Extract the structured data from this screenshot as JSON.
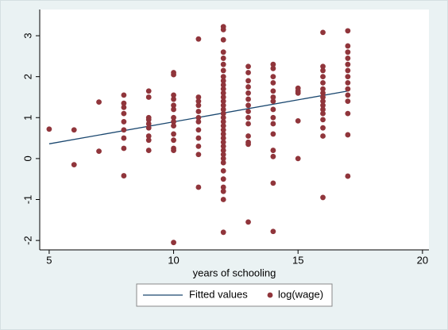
{
  "chart_data": {
    "type": "scatter",
    "xlabel": "years of schooling",
    "xlim": [
      4.62,
      20.26
    ],
    "ylim": [
      -2.23,
      3.64
    ],
    "xticks": [
      5,
      10,
      15,
      20
    ],
    "yticks": [
      -2,
      -1,
      0,
      1,
      2,
      3
    ],
    "grid": false,
    "legend": "bottom",
    "series": [
      {
        "name": "Fitted values",
        "type": "line",
        "color": "#1a476f",
        "x": [
          5,
          17
        ],
        "values": [
          0.36,
          1.65
        ]
      },
      {
        "name": "log(wage)",
        "type": "scatter",
        "color": "#90353b",
        "x": [
          5,
          6,
          6,
          7,
          7,
          8,
          8,
          8,
          8,
          8,
          8,
          8,
          8,
          8,
          9,
          9,
          9,
          9,
          9,
          9,
          9,
          9,
          9,
          10,
          10,
          10,
          10,
          10,
          10,
          10,
          10,
          10,
          10,
          10,
          10,
          10,
          10,
          11,
          11,
          11,
          11,
          11,
          11,
          11,
          11,
          11,
          11,
          11,
          11,
          12,
          12,
          12,
          12,
          12,
          12,
          12,
          12,
          12,
          12,
          12,
          12,
          12,
          12,
          12,
          12,
          12,
          12,
          12,
          12,
          12,
          12,
          12,
          12,
          12,
          12,
          12,
          12,
          12,
          12,
          12,
          12,
          12,
          12,
          12,
          13,
          13,
          13,
          13,
          13,
          13,
          13,
          13,
          13,
          13,
          13,
          13,
          13,
          13,
          14,
          14,
          14,
          14,
          14,
          14,
          14,
          14,
          14,
          14,
          14,
          14,
          14,
          14,
          14,
          15,
          15,
          15,
          15,
          15,
          16,
          16,
          16,
          16,
          16,
          16,
          16,
          16,
          16,
          16,
          16,
          16,
          16,
          16,
          16,
          16,
          17,
          17,
          17,
          17,
          17,
          17,
          17,
          17,
          17,
          17,
          17,
          17,
          17,
          17
        ],
        "values": [
          0.72,
          0.7,
          -0.15,
          1.38,
          0.18,
          1.55,
          1.35,
          1.25,
          1.1,
          0.9,
          0.7,
          0.5,
          0.25,
          -0.42,
          1.65,
          1.5,
          1.0,
          0.95,
          0.85,
          0.75,
          0.55,
          0.45,
          0.2,
          2.1,
          2.05,
          1.55,
          1.45,
          1.3,
          1.2,
          1.0,
          0.9,
          0.8,
          0.6,
          0.45,
          0.25,
          0.2,
          -2.05,
          2.92,
          1.5,
          1.4,
          1.3,
          1.15,
          1.0,
          0.9,
          0.7,
          0.5,
          0.3,
          0.1,
          -0.7,
          3.22,
          3.15,
          2.9,
          2.6,
          2.45,
          2.3,
          2.15,
          2.0,
          1.9,
          1.8,
          1.7,
          1.6,
          1.5,
          1.4,
          1.3,
          1.2,
          1.1,
          1.0,
          0.9,
          0.8,
          0.7,
          0.6,
          0.5,
          0.4,
          0.3,
          0.2,
          0.1,
          0,
          -0.1,
          -0.3,
          -0.5,
          -0.7,
          -0.8,
          -1.0,
          -1.8,
          2.25,
          2.1,
          1.9,
          1.75,
          1.6,
          1.45,
          1.3,
          1.15,
          1.0,
          0.85,
          0.55,
          0.4,
          0.35,
          -1.55,
          2.3,
          2.2,
          2.0,
          1.85,
          1.65,
          1.5,
          1.4,
          1.2,
          1.0,
          0.85,
          0.6,
          0.2,
          0.05,
          -0.6,
          -1.78,
          1.72,
          1.65,
          1.6,
          0.92,
          0.0,
          3.08,
          2.25,
          2.15,
          2.0,
          1.85,
          1.7,
          1.6,
          1.5,
          1.4,
          1.3,
          1.2,
          1.1,
          0.95,
          0.75,
          0.55,
          -0.95,
          3.12,
          2.75,
          2.6,
          2.45,
          2.3,
          2.15,
          2.0,
          1.85,
          1.7,
          1.55,
          1.4,
          1.1,
          0.58,
          -0.43
        ]
      }
    ]
  }
}
